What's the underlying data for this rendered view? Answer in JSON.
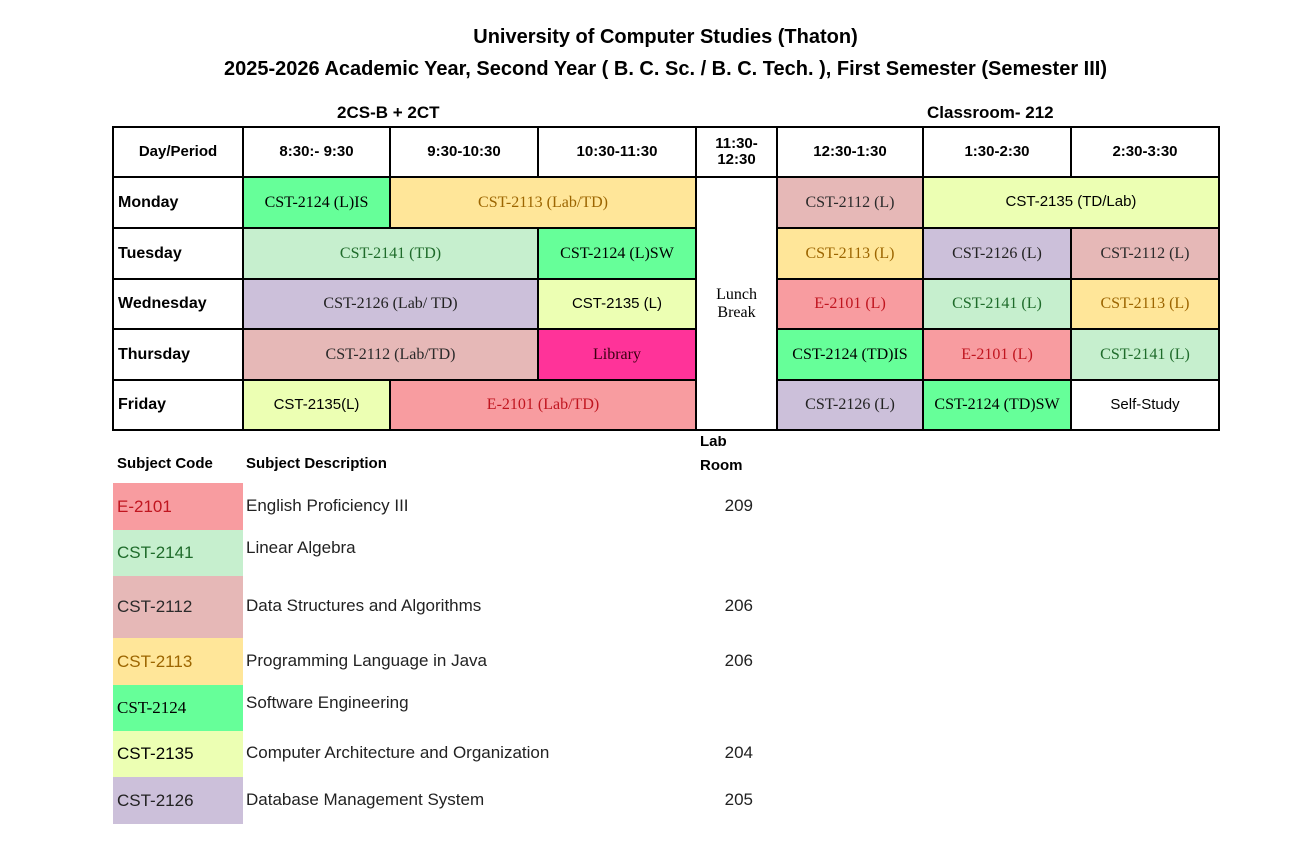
{
  "title": "University of Computer Studies (Thaton)",
  "subtitle": "2025-2026 Academic Year, Second Year ( B. C. Sc. / B. C. Tech. ), First Semester (Semester III)",
  "group_label": "2CS-B + 2CT",
  "classroom_label": "Classroom- 212",
  "subjects": {
    "E-2101": {
      "bg": "#f89ca0",
      "fg": "#c0151f"
    },
    "CST-2141": {
      "bg": "#c6efce",
      "fg": "#1e6b2a"
    },
    "CST-2112": {
      "bg": "#e6b8b7",
      "fg": "#2a2a2a"
    },
    "CST-2113": {
      "bg": "#ffe699",
      "fg": "#9c6500"
    },
    "CST-2124": {
      "bg": "#66ff99",
      "fg": "#000000"
    },
    "CST-2135": {
      "bg": "#ecffb3",
      "fg": "#000000"
    },
    "CST-2126": {
      "bg": "#ccc0da",
      "fg": "#222222"
    },
    "Library": {
      "bg": "#ff3399",
      "fg": "#3a0010"
    },
    "Self": {
      "bg": "#ffffff",
      "fg": "#000000"
    }
  },
  "timetable": {
    "headers": [
      "Day/Period",
      "8:30:- 9:30",
      "9:30-10:30",
      "10:30-11:30",
      "11:30-12:30",
      "12:30-1:30",
      "1:30-2:30",
      "2:30-3:30"
    ],
    "lunch_label": "Lunch Break",
    "days": [
      {
        "day": "Monday",
        "morning": [
          {
            "text": "CST-2124 (L)IS",
            "subject": "CST-2124",
            "periods": 1
          },
          {
            "text": "CST-2113 (Lab/TD)",
            "subject": "CST-2113",
            "periods": 2
          }
        ],
        "afternoon": [
          {
            "text": "CST-2112 (L)",
            "subject": "CST-2112",
            "periods": 1
          },
          {
            "text": "CST-2135 (TD/Lab)",
            "subject": "CST-2135",
            "periods": 2,
            "sans": true
          }
        ]
      },
      {
        "day": "Tuesday",
        "morning": [
          {
            "text": "CST-2141 (TD)",
            "subject": "CST-2141",
            "periods": 2
          },
          {
            "text": "CST-2124 (L)SW",
            "subject": "CST-2124",
            "periods": 1
          }
        ],
        "afternoon": [
          {
            "text": "CST-2113 (L)",
            "subject": "CST-2113",
            "periods": 1
          },
          {
            "text": "CST-2126  (L)",
            "subject": "CST-2126",
            "periods": 1
          },
          {
            "text": "CST-2112 (L)",
            "subject": "CST-2112",
            "periods": 1
          }
        ]
      },
      {
        "day": "Wednesday",
        "morning": [
          {
            "text": "CST-2126 (Lab/ TD)",
            "subject": "CST-2126",
            "periods": 2
          },
          {
            "text": "CST-2135 (L)",
            "subject": "CST-2135",
            "periods": 1,
            "sans": true
          }
        ],
        "afternoon": [
          {
            "text": "E-2101 (L)",
            "subject": "E-2101",
            "periods": 1
          },
          {
            "text": "CST-2141 (L)",
            "subject": "CST-2141",
            "periods": 1
          },
          {
            "text": "CST-2113 (L)",
            "subject": "CST-2113",
            "periods": 1
          }
        ]
      },
      {
        "day": "Thursday",
        "morning": [
          {
            "text": "CST-2112 (Lab/TD)",
            "subject": "CST-2112",
            "periods": 2
          },
          {
            "text": "Library",
            "subject": "Library",
            "periods": 1
          }
        ],
        "afternoon": [
          {
            "text": "CST-2124 (TD)IS",
            "subject": "CST-2124",
            "periods": 1
          },
          {
            "text": "E-2101 (L)",
            "subject": "E-2101",
            "periods": 1
          },
          {
            "text": "CST-2141 (L)",
            "subject": "CST-2141",
            "periods": 1
          }
        ]
      },
      {
        "day": "Friday",
        "morning": [
          {
            "text": "CST-2135(L)",
            "subject": "CST-2135",
            "periods": 1,
            "sans": true
          },
          {
            "text": "E-2101 (Lab/TD)",
            "subject": "E-2101",
            "periods": 2
          }
        ],
        "afternoon": [
          {
            "text": "CST-2126 (L)",
            "subject": "CST-2126",
            "periods": 1
          },
          {
            "text": "CST-2124 (TD)SW",
            "subject": "CST-2124",
            "periods": 1
          },
          {
            "text": "Self-Study",
            "subject": "Self",
            "periods": 1,
            "sans": true
          }
        ]
      }
    ]
  },
  "legend": {
    "code_header": "Subject Code",
    "desc_header": "Subject Description",
    "room_header_1": "Lab",
    "room_header_2": "Room",
    "rows": [
      {
        "code": "E-2101",
        "desc": "English Proficiency III",
        "room": "209"
      },
      {
        "code": "CST-2141",
        "desc": "Linear Algebra",
        "room": ""
      },
      {
        "code": "CST-2112",
        "desc": "Data Structures and Algorithms",
        "room": "206"
      },
      {
        "code": "CST-2113",
        "desc": "Programming Language in Java",
        "room": "206"
      },
      {
        "code": "CST-2124",
        "desc": "Software Engineering",
        "room": ""
      },
      {
        "code": "CST-2135",
        "desc": "Computer Architecture and Organization",
        "room": "204"
      },
      {
        "code": "CST-2126",
        "desc": "Database Management System",
        "room": "205"
      }
    ]
  }
}
